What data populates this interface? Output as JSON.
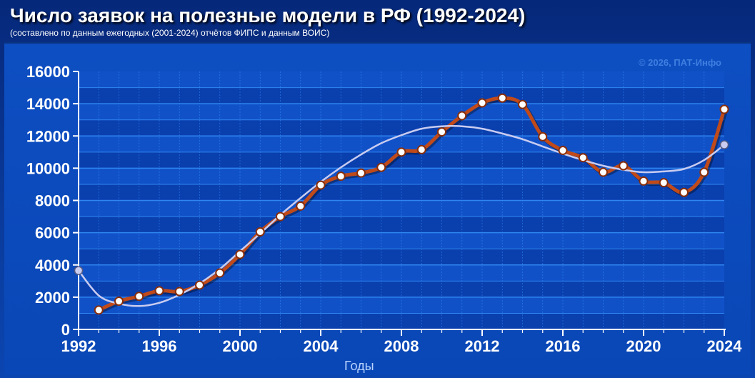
{
  "header": {
    "title": "Число заявок на полезные модели в РФ (1992-2024)",
    "subtitle": "(составлено по данным ежегодных (2001-2024) отчётов ФИПС и данным ВОИС)"
  },
  "watermark": "© 2026, ПАТ-Инфо",
  "colors": {
    "background": "#0a3a9a",
    "plot_band_dark": "#0a3fae",
    "plot_band_light": "#1151c8",
    "gridline": "#2f86f0",
    "series_line": "#c04a1a",
    "trend_line": "#c9ccf0",
    "marker_fill": "#ffffff",
    "watermark": "#3f7fe0",
    "axis_text": "#ffffff",
    "xlabel_text": "#b8d4ff"
  },
  "chart_data": {
    "type": "line",
    "title": "Число заявок на полезные модели в РФ (1992-2024)",
    "xlabel": "Годы",
    "ylabel": "",
    "xlim": [
      1992,
      2024
    ],
    "ylim": [
      0,
      16000
    ],
    "x_ticks": [
      "1992",
      "1996",
      "2000",
      "2004",
      "2008",
      "2012",
      "2016",
      "2020",
      "2024"
    ],
    "y_ticks": [
      "0",
      "2000",
      "4000",
      "6000",
      "8000",
      "10000",
      "12000",
      "14000",
      "16000"
    ],
    "grid": true,
    "legend": "none",
    "series": [
      {
        "x": [
          1993,
          1994,
          1995,
          1996,
          1997,
          1998,
          1999,
          2000,
          2001,
          2002,
          2003,
          2004,
          2005,
          2006,
          2007,
          2008,
          2009,
          2010,
          2011,
          2012,
          2013,
          2014,
          2015,
          2016,
          2017,
          2018,
          2019,
          2020,
          2021,
          2022,
          2023,
          2024
        ],
        "values": [
          1200,
          1750,
          2050,
          2400,
          2350,
          2750,
          3500,
          4650,
          6050,
          7000,
          7650,
          8950,
          9500,
          9700,
          10050,
          11000,
          11150,
          12250,
          13250,
          14050,
          14350,
          13950,
          11950,
          11100,
          10650,
          9750,
          10150,
          9200,
          9100,
          8500,
          9750,
          13650
        ]
      },
      {
        "x": [
          1992,
          1993,
          1994,
          1995,
          1996,
          1997,
          1998,
          1999,
          2000,
          2001,
          2002,
          2003,
          2004,
          2005,
          2006,
          2007,
          2008,
          2009,
          2010,
          2011,
          2012,
          2013,
          2014,
          2015,
          2016,
          2017,
          2018,
          2019,
          2020,
          2021,
          2022,
          2023,
          2024
        ],
        "values": [
          3650,
          2100,
          1600,
          1450,
          1650,
          2150,
          2850,
          3750,
          4850,
          5950,
          7100,
          8150,
          9150,
          10050,
          10850,
          11550,
          12050,
          12450,
          12600,
          12600,
          12450,
          12150,
          11800,
          11350,
          10900,
          10500,
          10150,
          9900,
          9750,
          9800,
          9950,
          10500,
          11450
        ]
      }
    ]
  }
}
